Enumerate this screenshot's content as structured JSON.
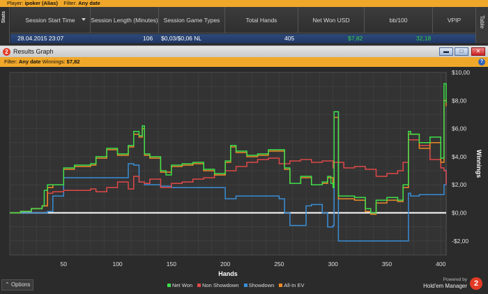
{
  "topbar": {
    "player_label": "Player:",
    "player_value": "ipoker (Alias)",
    "filter_label": "Filter:",
    "filter_value": "Any date"
  },
  "side_tabs": {
    "stats": "Stats",
    "table": "Table"
  },
  "table": {
    "headers": [
      "Session Start Time",
      "Session Length (Minutes)",
      "Session Game Types",
      "Total Hands",
      "Net Won USD",
      "bb/100",
      "VPIP"
    ],
    "row": {
      "start": "28.04.2015 23:07",
      "length": "106",
      "game_types": "$0,03/$0,06 NL",
      "hands": "405",
      "net_won": "$7,82",
      "bb100": "32,18"
    }
  },
  "window": {
    "app_icon": "2",
    "title": "Results Graph",
    "buttons": {
      "minimize": "▬",
      "maximize": "□",
      "close": "✕"
    }
  },
  "filterbar": {
    "label": "Filter:",
    "value": "Any date",
    "winnings_label": "Winnings:",
    "winnings_value": "$7,82",
    "help": "?"
  },
  "options_label": "Options",
  "brand": {
    "powered": "Powered by",
    "name": "Hold'em Manager",
    "logo": "2"
  },
  "colors": {
    "net_won": "#3de04a",
    "non_showdown": "#e04848",
    "showdown": "#3a8fd8",
    "allin_ev": "#f08a28",
    "accent": "#f0a82a"
  },
  "chart_data": {
    "type": "line",
    "xlabel": "Hands",
    "ylabel": "Winnings",
    "xlim": [
      0,
      405
    ],
    "ylim": [
      -3,
      10
    ],
    "x_ticks": [
      50,
      100,
      150,
      200,
      250,
      300,
      350,
      400
    ],
    "y_ticks": [
      -2,
      0,
      2,
      4,
      6,
      8,
      10
    ],
    "y_tick_labels": [
      "-$2,00",
      "$0,00",
      "$2,00",
      "$4,00",
      "$6,00",
      "$8,00",
      "$10,00"
    ],
    "grid": true,
    "legend_position": "bottom",
    "series": [
      {
        "name": "Net Won",
        "x": [
          0,
          10,
          20,
          30,
          32,
          35,
          40,
          50,
          60,
          75,
          80,
          90,
          100,
          110,
          115,
          120,
          123,
          125,
          130,
          140,
          145,
          150,
          160,
          170,
          180,
          190,
          200,
          205,
          210,
          220,
          230,
          240,
          250,
          255,
          260,
          270,
          280,
          290,
          295,
          298,
          300,
          301,
          305,
          310,
          320,
          330,
          335,
          340,
          350,
          360,
          365,
          370,
          372,
          380,
          390,
          400,
          403,
          405
        ],
        "y": [
          0,
          0.1,
          0.3,
          0.5,
          1.6,
          2.0,
          2.0,
          3.2,
          3.4,
          3.5,
          4.0,
          4.6,
          4.2,
          4.8,
          5.8,
          5.5,
          6.2,
          4.2,
          4.0,
          3.0,
          2.7,
          3.4,
          3.5,
          3.6,
          3.1,
          2.8,
          3.7,
          4.8,
          4.4,
          4.1,
          4.2,
          4.5,
          4.5,
          3.2,
          2.1,
          2.6,
          2.0,
          2.2,
          2.6,
          2.1,
          1.8,
          7.2,
          1.2,
          1.2,
          1.1,
          0.3,
          0.0,
          0.9,
          1.1,
          0.9,
          2.0,
          5.8,
          5.6,
          5.0,
          5.4,
          3.9,
          9.2,
          7.82
        ]
      },
      {
        "name": "Non Showdown",
        "x": [
          0,
          10,
          20,
          30,
          35,
          40,
          50,
          60,
          75,
          80,
          90,
          100,
          110,
          115,
          120,
          125,
          130,
          140,
          150,
          160,
          170,
          180,
          190,
          200,
          210,
          220,
          230,
          240,
          250,
          260,
          270,
          280,
          290,
          300,
          301,
          310,
          320,
          330,
          340,
          350,
          360,
          365,
          370,
          380,
          390,
          400,
          403,
          405
        ],
        "y": [
          0,
          0.1,
          0.3,
          0.5,
          1.4,
          1.5,
          1.6,
          1.6,
          1.7,
          1.5,
          1.8,
          2.2,
          1.7,
          2.6,
          2.2,
          2.1,
          2.4,
          1.8,
          2.1,
          2.2,
          2.4,
          2.5,
          2.7,
          3.0,
          3.3,
          3.6,
          3.8,
          3.9,
          3.5,
          3.7,
          3.8,
          3.6,
          3.7,
          3.2,
          3.6,
          3.2,
          3.3,
          3.1,
          2.6,
          2.8,
          3.0,
          3.6,
          5.2,
          4.8,
          3.8,
          3.2,
          3.0,
          2.0
        ]
      },
      {
        "name": "Showdown",
        "x": [
          0,
          30,
          35,
          40,
          50,
          60,
          100,
          110,
          115,
          120,
          125,
          140,
          150,
          200,
          210,
          250,
          255,
          260,
          270,
          275,
          280,
          290,
          295,
          300,
          301,
          305,
          310,
          320,
          330,
          340,
          350,
          360,
          370,
          372,
          380,
          390,
          400,
          403,
          405
        ],
        "y": [
          0,
          0,
          0.1,
          1.2,
          2.5,
          2.5,
          2.5,
          3.5,
          3.4,
          2.2,
          2.0,
          1.9,
          1.8,
          1.0,
          1.2,
          1.0,
          0,
          -0.9,
          -0.9,
          0.5,
          0.6,
          0,
          -1.0,
          -0.9,
          7.2,
          -2.0,
          -2.0,
          -2.0,
          -2.0,
          -2.0,
          -2.0,
          -2.0,
          1.4,
          1.2,
          1.3,
          1.3,
          1.3,
          2.0,
          3.1
        ]
      },
      {
        "name": "All-In EV",
        "x": [
          0,
          10,
          20,
          30,
          35,
          40,
          50,
          60,
          75,
          80,
          90,
          100,
          110,
          115,
          120,
          123,
          125,
          130,
          140,
          150,
          160,
          170,
          180,
          190,
          200,
          205,
          210,
          220,
          230,
          240,
          250,
          255,
          260,
          270,
          280,
          290,
          295,
          300,
          301,
          305,
          310,
          320,
          330,
          335,
          340,
          350,
          360,
          365,
          370,
          380,
          390,
          400,
          403,
          405
        ],
        "y": [
          0,
          0.1,
          0.3,
          0.5,
          1.8,
          2.0,
          3.1,
          3.3,
          3.4,
          3.9,
          4.5,
          4.1,
          4.7,
          5.6,
          5.4,
          6.0,
          4.1,
          3.9,
          2.9,
          3.3,
          3.4,
          3.5,
          3.0,
          2.7,
          3.6,
          4.7,
          4.3,
          4.0,
          4.1,
          4.4,
          4.4,
          3.1,
          2.1,
          2.5,
          2.0,
          2.1,
          2.5,
          2.0,
          6.8,
          1.0,
          1.0,
          0.9,
          0.1,
          -0.1,
          0.7,
          0.9,
          0.8,
          1.8,
          5.6,
          4.6,
          5.0,
          3.6,
          8.0,
          7.6
        ]
      }
    ]
  }
}
